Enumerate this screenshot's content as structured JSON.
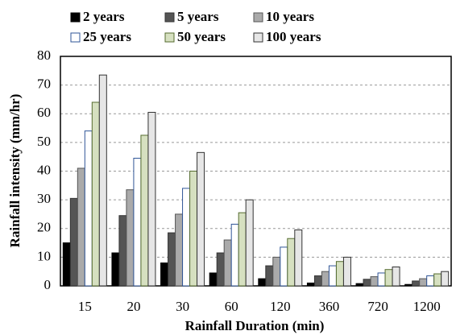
{
  "chart_data": {
    "type": "bar",
    "x_label": "Rainfall Duration (min)",
    "y_label": "Rainfall intensity (mm/hr)",
    "categories": [
      "15",
      "20",
      "30",
      "60",
      "120",
      "360",
      "720",
      "1200"
    ],
    "series": [
      {
        "name": "2 years",
        "color": "#000000",
        "edgecolor": "#000000",
        "values": [
          15,
          11.5,
          8,
          4.5,
          2.5,
          1,
          0.8,
          0.5
        ]
      },
      {
        "name": "5 years",
        "color": "#555555",
        "edgecolor": "#333333",
        "values": [
          30.5,
          24.5,
          18.5,
          11.5,
          7,
          3.5,
          2.3,
          1.7
        ]
      },
      {
        "name": "10 years",
        "color": "#aaaaaa",
        "edgecolor": "#555555",
        "values": [
          41,
          33.5,
          25,
          16,
          10,
          5,
          3.2,
          2.5
        ]
      },
      {
        "name": "25 years",
        "color": "#ffffff",
        "edgecolor": "#2f5597",
        "values": [
          54,
          44.5,
          34,
          21.5,
          13.5,
          7,
          4.5,
          3.5
        ]
      },
      {
        "name": "50 years",
        "color": "#d6e0c0",
        "edgecolor": "#556b2f",
        "values": [
          64,
          52.5,
          40,
          25.5,
          16.5,
          8.5,
          5.7,
          4.2
        ]
      },
      {
        "name": "100 years",
        "color": "#e6e6e6",
        "edgecolor": "#333333",
        "values": [
          73.5,
          60.5,
          46.5,
          30,
          19.5,
          10,
          6.6,
          5
        ]
      }
    ],
    "ylim": [
      0,
      80
    ],
    "yticks": [
      0,
      10,
      20,
      30,
      40,
      50,
      60,
      70,
      80
    ],
    "grid": true
  }
}
